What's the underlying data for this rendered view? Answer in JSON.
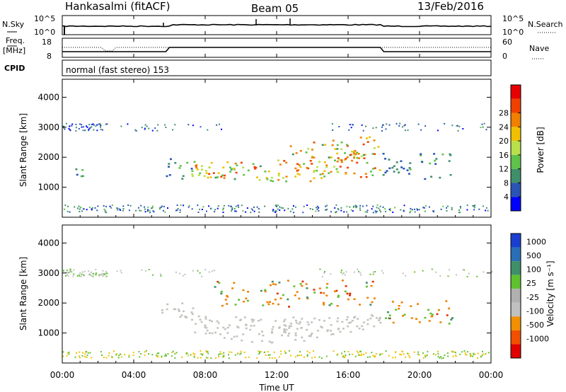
{
  "header": {
    "station": "Hankasalmi (fitACF)",
    "beam": "Beam 05",
    "date": "13/Feb/2016"
  },
  "panels": {
    "nsky": {
      "label": "N.Sky",
      "left_ticks": [
        "10^5",
        "10^0"
      ],
      "right_ticks": [
        "10^5",
        "10^0"
      ],
      "right_label": "N.Search"
    },
    "freq": {
      "label_top": "Freq.",
      "label_unit": "[MHz]",
      "left_ticks": [
        "18",
        "8"
      ],
      "right_ticks": [
        "60",
        "0"
      ],
      "right_label": "Nave",
      "cpid_label": "CPID"
    },
    "cpid_text": "normal (fast stereo) 153"
  },
  "colors": {
    "power": [
      "#0000ff",
      "#2a55b5",
      "#3f8f6a",
      "#5fc24a",
      "#b8e04a",
      "#f0c000",
      "#f08000",
      "#f04000",
      "#e80000"
    ],
    "velocity": [
      "#e00000",
      "#f05000",
      "#f09000",
      "#c0c0c0",
      "#b0b0b0",
      "#60c030",
      "#3f8f6a",
      "#2a6fb5",
      "#1a3fd0"
    ],
    "ground_scatter": "#c4c4be"
  },
  "chart_data": [
    {
      "type": "heatmap",
      "ylabel": "Slant Range [km]",
      "xlabel": "",
      "x_ticks": [
        "00:00",
        "04:00",
        "08:00",
        "12:00",
        "16:00",
        "20:00",
        "00:00"
      ],
      "y_ticks": [
        "1000",
        "2000",
        "3000",
        "4000"
      ],
      "colorbar": {
        "label": "Power [dB]",
        "ticks": [
          "4",
          "8",
          "12",
          "16",
          "20",
          "24",
          "28"
        ]
      },
      "regions": [
        {
          "name": "main_echo_band",
          "t0": 7.2,
          "t1": 17.8,
          "r_low": 1100,
          "r_high": 2400,
          "peak_db": 28
        },
        {
          "name": "upper_band",
          "t0": 12.5,
          "t1": 17.5,
          "r_low": 2000,
          "r_high": 2700,
          "peak_db": 28
        },
        {
          "name": "early_patch",
          "t0": 5.8,
          "t1": 7.5,
          "r_low": 1300,
          "r_high": 2100,
          "peak_db": 14
        },
        {
          "name": "evening_patch",
          "t0": 17.8,
          "t1": 21.8,
          "r_low": 1300,
          "r_high": 2200,
          "peak_db": 12
        },
        {
          "name": "morning_patch",
          "t0": 0.2,
          "t1": 1.5,
          "r_low": 1350,
          "r_high": 1700,
          "peak_db": 12
        }
      ]
    },
    {
      "type": "heatmap",
      "ylabel": "Slant Range [km]",
      "xlabel": "Time UT",
      "x_ticks": [
        "00:00",
        "04:00",
        "08:00",
        "12:00",
        "16:00",
        "20:00",
        "00:00"
      ],
      "y_ticks": [
        "1000",
        "2000",
        "3000",
        "4000"
      ],
      "colorbar": {
        "label": "Velocity [m s⁻¹]",
        "ticks": [
          "1000",
          "500",
          "100",
          "25",
          "-25",
          "-100",
          "-500",
          "-1000"
        ]
      },
      "regions": [
        {
          "name": "ground_scatter",
          "t0": 5.5,
          "t1": 17.8,
          "r_low": 700,
          "r_high": 2000
        },
        {
          "name": "ionospheric_band",
          "t0": 8.5,
          "t1": 17.5,
          "r_low": 1900,
          "r_high": 2800,
          "velocity_ms": -300
        },
        {
          "name": "evening_patch",
          "t0": 17.8,
          "t1": 21.8,
          "r_low": 1300,
          "r_high": 2100,
          "velocity_ms": -400
        }
      ]
    }
  ]
}
